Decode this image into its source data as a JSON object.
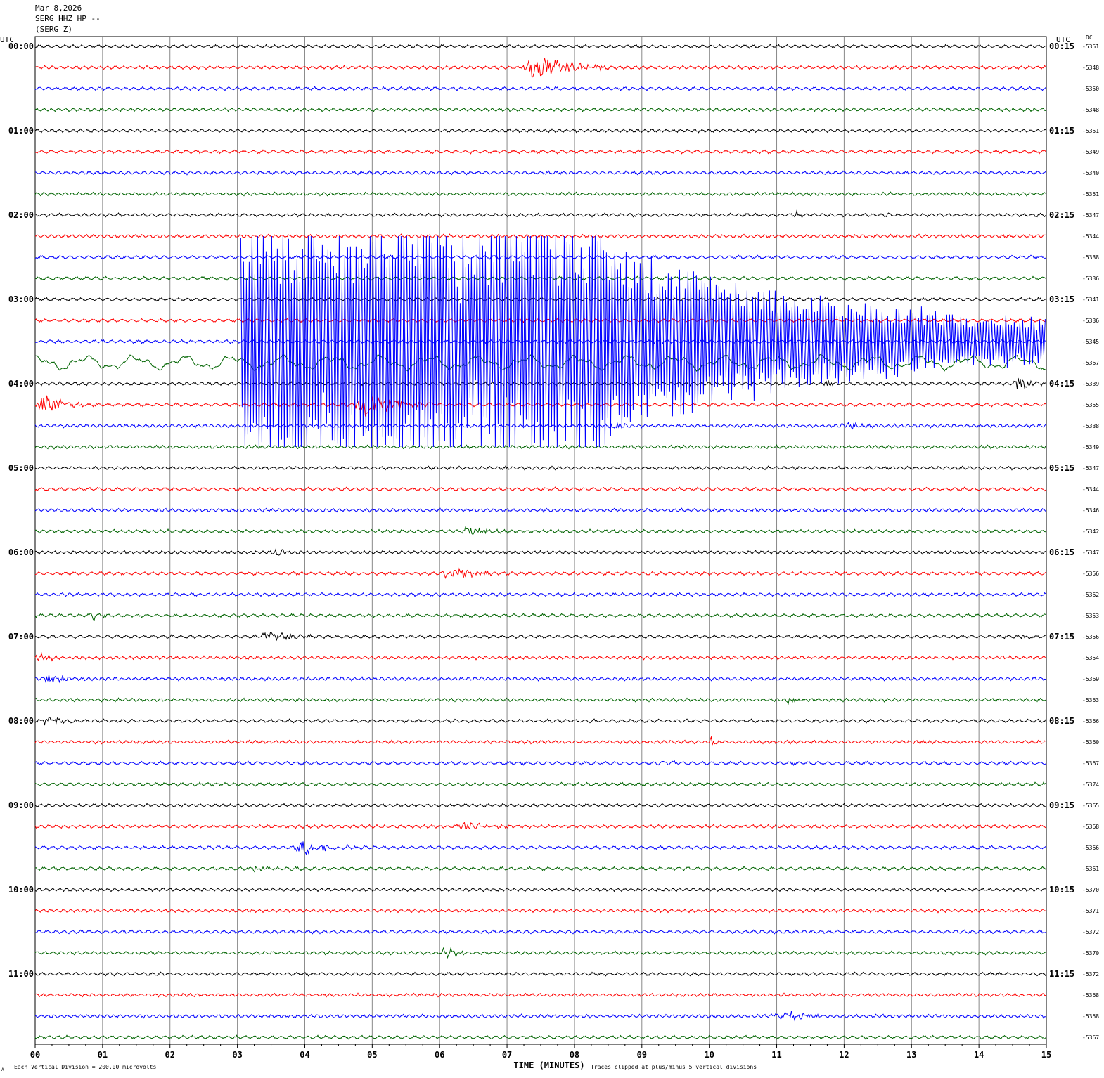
{
  "header": {
    "date": "Mar 8,2026",
    "station": "SERG HHZ HP --",
    "station_paren": "(SERG Z)"
  },
  "footer": {
    "scale_note": "Each Vertical Division =  200.00 microvolts",
    "clip_note": "Traces clipped at plus/minus 5 vertical divisions",
    "corner_mark": "A"
  },
  "chart_data": {
    "type": "line",
    "title": "",
    "xlabel": "TIME (MINUTES)",
    "xlim": [
      0,
      15
    ],
    "x_ticks": [
      "00",
      "01",
      "02",
      "03",
      "04",
      "05",
      "06",
      "07",
      "08",
      "09",
      "10",
      "11",
      "12",
      "13",
      "14",
      "15"
    ],
    "left_axis_label": "UTC",
    "right_axis_label": "UTC",
    "dc_label": "DC",
    "left_times": [
      "00:00",
      "01:00",
      "02:00",
      "03:00",
      "04:00",
      "05:00",
      "06:00",
      "07:00",
      "08:00",
      "09:00",
      "10:00",
      "11:00"
    ],
    "right_times": [
      "00:15",
      "01:15",
      "02:15",
      "03:15",
      "04:15",
      "05:15",
      "06:15",
      "07:15",
      "08:15",
      "09:15",
      "10:15",
      "11:15"
    ],
    "trace_colors": [
      "#000000",
      "#ff0000",
      "#0000ff",
      "#006400"
    ],
    "dc_values": [
      "-5351",
      "-5348",
      "-5350",
      "-5348",
      "-5351",
      "-5349",
      "-5340",
      "-5351",
      "-5347",
      "-5344",
      "-5338",
      "-5336",
      "-5341",
      "-5336",
      "-5345",
      "-5367",
      "-5339",
      "-5355",
      "-5338",
      "-5349",
      "-5347",
      "-5344",
      "-5346",
      "-5342",
      "-5347",
      "-5356",
      "-5362",
      "-5353",
      "-5356",
      "-5354",
      "-5369",
      "-5363",
      "-5366",
      "-5360",
      "-5367",
      "-5374",
      "-5365",
      "-5368",
      "-5366",
      "-5361",
      "-5370",
      "-5371",
      "-5372",
      "-5370",
      "-5372",
      "-5368",
      "-5358",
      "-5367"
    ],
    "events": [
      {
        "trace": 1,
        "start_min": 7.2,
        "end_min": 8.5,
        "amplitude": 22
      },
      {
        "trace": 8,
        "start_min": 11.2,
        "end_min": 11.5,
        "amplitude": 6
      },
      {
        "trace": 8,
        "start_min": 12.6,
        "end_min": 12.8,
        "amplitude": 4
      },
      {
        "trace": 16,
        "start_min": 11.7,
        "end_min": 12.0,
        "amplitude": 6
      },
      {
        "trace": 16,
        "start_min": 14.5,
        "end_min": 15.0,
        "amplitude": 12
      },
      {
        "trace": 17,
        "start_min": 0.0,
        "end_min": 0.8,
        "amplitude": 16
      },
      {
        "trace": 17,
        "start_min": 4.7,
        "end_min": 6.0,
        "amplitude": 22
      },
      {
        "trace": 18,
        "start_min": 8.5,
        "end_min": 9.0,
        "amplitude": 5
      },
      {
        "trace": 18,
        "start_min": 11.9,
        "end_min": 13.0,
        "amplitude": 4
      },
      {
        "trace": 23,
        "start_min": 6.3,
        "end_min": 7.0,
        "amplitude": 9
      },
      {
        "trace": 24,
        "start_min": 3.5,
        "end_min": 4.0,
        "amplitude": 5
      },
      {
        "trace": 25,
        "start_min": 6.0,
        "end_min": 7.0,
        "amplitude": 10
      },
      {
        "trace": 27,
        "start_min": 0.8,
        "end_min": 1.1,
        "amplitude": 7
      },
      {
        "trace": 28,
        "start_min": 3.3,
        "end_min": 4.3,
        "amplitude": 8
      },
      {
        "trace": 28,
        "start_min": 14.6,
        "end_min": 15.0,
        "amplitude": 4
      },
      {
        "trace": 29,
        "start_min": 0.0,
        "end_min": 0.5,
        "amplitude": 6
      },
      {
        "trace": 29,
        "start_min": 14.3,
        "end_min": 14.6,
        "amplitude": 5
      },
      {
        "trace": 30,
        "start_min": 0.1,
        "end_min": 0.8,
        "amplitude": 6
      },
      {
        "trace": 31,
        "start_min": 11.1,
        "end_min": 11.6,
        "amplitude": 4
      },
      {
        "trace": 32,
        "start_min": 0.0,
        "end_min": 0.8,
        "amplitude": 6
      },
      {
        "trace": 33,
        "start_min": 10.0,
        "end_min": 10.2,
        "amplitude": 8
      },
      {
        "trace": 34,
        "start_min": 9.2,
        "end_min": 9.8,
        "amplitude": 4
      },
      {
        "trace": 37,
        "start_min": 6.2,
        "end_min": 7.2,
        "amplitude": 6
      },
      {
        "trace": 38,
        "start_min": 3.8,
        "end_min": 5.0,
        "amplitude": 9
      },
      {
        "trace": 39,
        "start_min": 3.1,
        "end_min": 4.0,
        "amplitude": 6
      },
      {
        "trace": 43,
        "start_min": 6.0,
        "end_min": 6.4,
        "amplitude": 13
      },
      {
        "trace": 46,
        "start_min": 10.9,
        "end_min": 11.8,
        "amplitude": 9
      }
    ],
    "clipped_burst": {
      "trace": 14,
      "start_min": 3.05,
      "end_min": 8.5,
      "decay_end_min": 15.0,
      "clip_divisions": 5
    }
  }
}
